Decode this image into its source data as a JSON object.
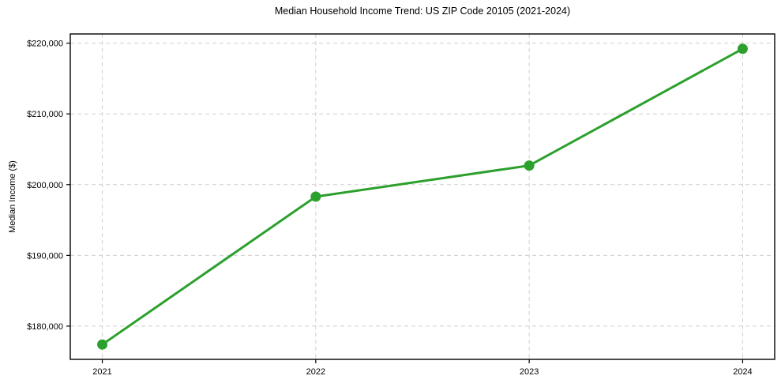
{
  "chart_data": {
    "type": "line",
    "title": "Median Household Income Trend: US ZIP Code 20105 (2021-2024)",
    "xlabel": "",
    "ylabel": "Median Income ($)",
    "x": [
      2021,
      2022,
      2023,
      2024
    ],
    "values": [
      177400,
      198300,
      202700,
      219200
    ],
    "series": [
      {
        "name": "Median Household Income",
        "values": [
          177400,
          198300,
          202700,
          219200
        ]
      }
    ],
    "xticks": {
      "values": [
        2021,
        2022,
        2023,
        2024
      ],
      "labels": [
        "2021",
        "2022",
        "2023",
        "2024"
      ]
    },
    "yticks": {
      "values": [
        180000,
        190000,
        200000,
        210000,
        220000
      ],
      "labels": [
        "$180,000",
        "$190,000",
        "$200,000",
        "$210,000",
        "$220,000"
      ]
    },
    "xlim": [
      2020.85,
      2024.15
    ],
    "ylim": [
      175300,
      221300
    ],
    "grid": "dashed-both-axes",
    "legend": "none",
    "styles": {
      "line_color": "#2ca02c",
      "marker": "circle",
      "marker_color": "#2ca02c",
      "grid_color": "#cfcfcf",
      "axis_color": "#000000",
      "tick_label_color": "#000000",
      "background": "#ffffff"
    }
  }
}
